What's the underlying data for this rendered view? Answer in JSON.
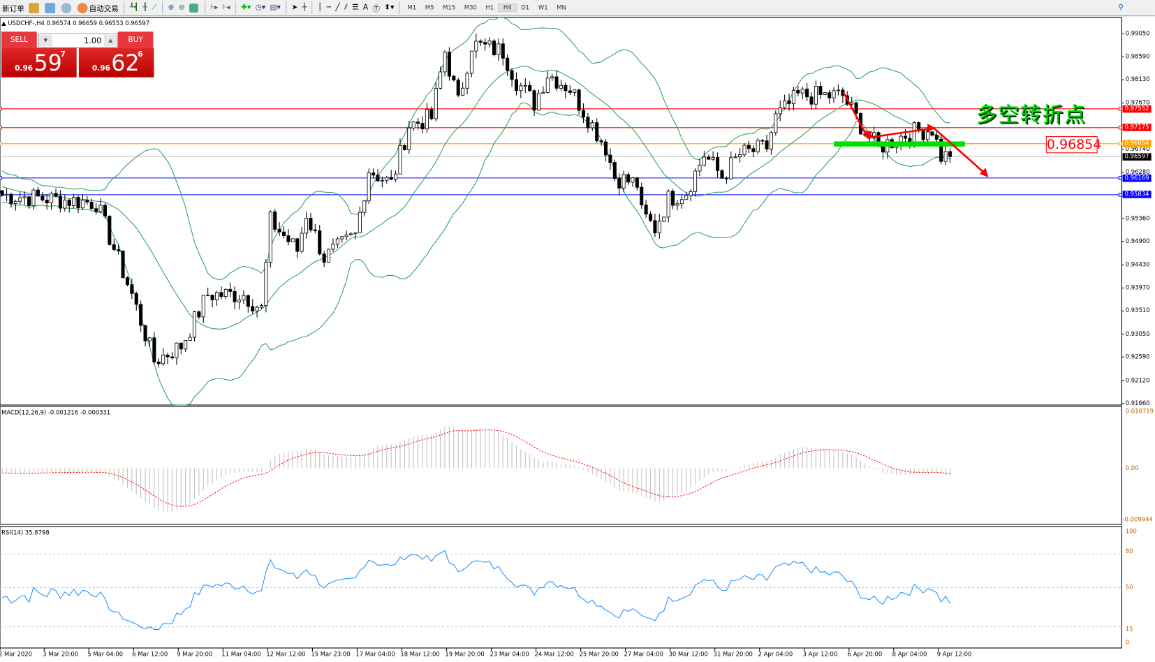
{
  "toolbar": {
    "new_order": "新订单",
    "auto_trading": "自动交易",
    "icons": [
      "market-watch-icon",
      "navigator-icon",
      "signals-icon",
      "bar-chart-icon",
      "candlestick-icon",
      "line-chart-icon",
      "zoom-in-icon",
      "zoom-out-icon",
      "tile-windows-icon",
      "chart-shift-icon",
      "autoscroll-icon",
      "new-chart-icon",
      "periodicity-icon",
      "templates-icon",
      "cursor-icon",
      "crosshair-icon",
      "vertical-line-icon",
      "horizontal-line-icon",
      "trendline-icon",
      "equidistant-channel-icon",
      "fibonacci-icon",
      "text-icon",
      "text-label-icon",
      "arrows-icon",
      "search-icon"
    ],
    "timeframes": [
      "M1",
      "M5",
      "M15",
      "M30",
      "H1",
      "H4",
      "D1",
      "W1",
      "MN"
    ],
    "active_timeframe": "H4"
  },
  "chart": {
    "header": "USDCHF-,H4  0.96574 0.96659 0.96553 0.96597",
    "trade_panel": {
      "sell_label": "SELL",
      "buy_label": "BUY",
      "lot": "1.00",
      "sell": {
        "prefix": "0.96",
        "big": "59",
        "sup": "7"
      },
      "buy": {
        "prefix": "0.96",
        "big": "62",
        "sup": "6"
      }
    },
    "price_axis": [
      "0.99050",
      "0.98590",
      "0.98130",
      "0.97670",
      "0.96740",
      "0.96280",
      "0.95360",
      "0.94900",
      "0.94430",
      "0.93970",
      "0.93510",
      "0.93050",
      "0.92590",
      "0.92120",
      "0.91660"
    ],
    "levels": [
      {
        "price": "0.97552",
        "color": "#ff0000"
      },
      {
        "price": "0.97175",
        "color": "#ff0000"
      },
      {
        "price": "0.96854",
        "color": "#ffa500"
      },
      {
        "price": "0.96597",
        "color": "#000000"
      },
      {
        "price": "0.96169",
        "color": "#0000ff"
      },
      {
        "price": "0.95834",
        "color": "#0000ff"
      }
    ],
    "annotation_text": "多空转折点",
    "annotation_price": "0.96854",
    "close_path": [
      [
        0,
        0.95826
      ],
      [
        21,
        0.95679
      ],
      [
        29,
        0.93839
      ],
      [
        34,
        0.92514
      ],
      [
        40,
        0.92809
      ],
      [
        46,
        0.93839
      ],
      [
        54,
        0.93839
      ],
      [
        58,
        0.93545
      ],
      [
        60,
        0.95311
      ],
      [
        66,
        0.94722
      ],
      [
        68,
        0.95458
      ],
      [
        72,
        0.94575
      ],
      [
        79,
        0.95017
      ],
      [
        82,
        0.96342
      ],
      [
        87,
        0.96047
      ],
      [
        91,
        0.97225
      ],
      [
        96,
        0.97372
      ],
      [
        99,
        0.98697
      ],
      [
        102,
        0.97666
      ],
      [
        105,
        0.98844
      ],
      [
        112,
        0.98697
      ],
      [
        115,
        0.98108
      ],
      [
        119,
        0.97666
      ],
      [
        122,
        0.98255
      ],
      [
        127,
        0.97961
      ],
      [
        132,
        0.97225
      ],
      [
        135,
        0.96783
      ],
      [
        137,
        0.96194
      ],
      [
        142,
        0.96047
      ],
      [
        143,
        0.95458
      ],
      [
        146,
        0.95164
      ],
      [
        149,
        0.95753
      ],
      [
        153,
        0.959
      ],
      [
        157,
        0.96636
      ],
      [
        161,
        0.96194
      ],
      [
        165,
        0.96636
      ],
      [
        171,
        0.96783
      ],
      [
        173,
        0.97372
      ],
      [
        178,
        0.97814
      ],
      [
        188,
        0.97814
      ],
      [
        193,
        0.97078
      ],
      [
        196,
        0.96783
      ],
      [
        203,
        0.97078
      ],
      [
        208,
        0.97151
      ],
      [
        210,
        0.96606
      ],
      [
        212,
        0.96597
      ]
    ],
    "candle_color_up": "#ffffff",
    "candle_color_down": "#000000",
    "bands_color": "#2e9e5e"
  },
  "macd": {
    "label": "MACD(12,26,9) -0.001216 -0.000331",
    "axis": [
      "0.010719",
      "0.00",
      "-0.009944"
    ],
    "signal_color": "#ff0000",
    "hist_color": "#c0c0c0"
  },
  "rsi": {
    "label": "RSI(14) 35.8798",
    "axis": [
      "100",
      "80",
      "50",
      "15",
      "0"
    ],
    "color": "#1e90ff"
  },
  "time_axis": [
    "2 Mar 2020",
    "3 Mar 20:00",
    "5 Mar 04:00",
    "6 Mar 12:00",
    "9 Mar 20:00",
    "11 Mar 04:00",
    "12 Mar 12:00",
    "15 Mar 23:00",
    "17 Mar 04:00",
    "18 Mar 12:00",
    "19 Mar 20:00",
    "23 Mar 04:00",
    "24 Mar 12:00",
    "25 Mar 20:00",
    "27 Mar 04:00",
    "30 Mar 12:00",
    "31 Mar 20:00",
    "2 Apr 04:00",
    "3 Apr 12:00",
    "6 Apr 20:00",
    "8 Apr 04:00",
    "9 Apr 12:00"
  ]
}
